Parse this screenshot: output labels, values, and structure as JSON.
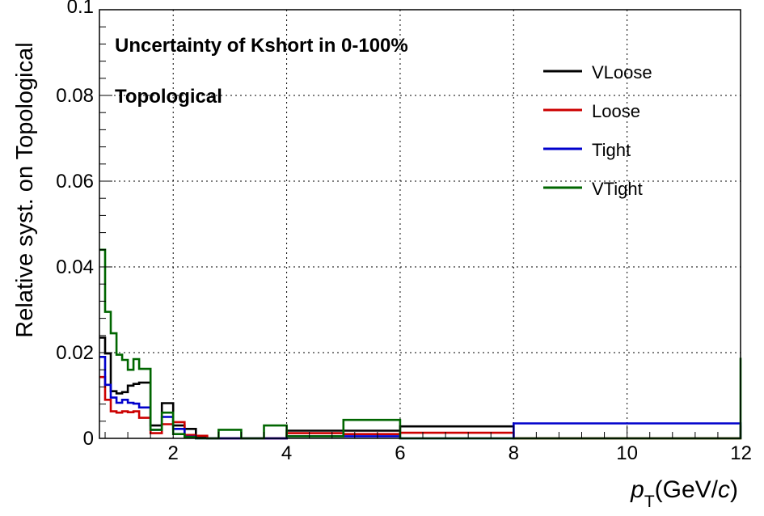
{
  "chart_data": {
    "type": "line",
    "style": "step-histogram",
    "title_lines": [
      "Uncertainty of Kshort in 0-100%",
      "Topological"
    ],
    "ylabel": "Relative syst. on Topological",
    "xlabel_parts": {
      "p": "p",
      "sub": "T",
      "unit_pre": "(GeV/",
      "unit_var": "c",
      "unit_post": ")"
    },
    "xlim": [
      0.7,
      12
    ],
    "ylim": [
      0,
      0.1
    ],
    "x_ticks": [
      2,
      4,
      6,
      8,
      10,
      12
    ],
    "x_tick_labels": [
      "2",
      "4",
      "6",
      "8",
      "10",
      "12"
    ],
    "y_ticks": [
      0,
      0.02,
      0.04,
      0.06,
      0.08,
      0.1
    ],
    "y_tick_labels": [
      "0",
      "0.02",
      "0.04",
      "0.06",
      "0.08",
      "0.1"
    ],
    "grid": true,
    "legend_position": "top-right",
    "bin_edges": [
      0.7,
      0.8,
      0.9,
      1.0,
      1.1,
      1.2,
      1.3,
      1.4,
      1.6,
      1.8,
      2.0,
      2.2,
      2.4,
      2.6,
      2.8,
      3.2,
      3.6,
      4.0,
      5.0,
      6.0,
      8.0,
      12.0
    ],
    "series": [
      {
        "name": "VLoose",
        "color": "#000000",
        "values": [
          0.0235,
          0.0198,
          0.011,
          0.0105,
          0.0108,
          0.0123,
          0.0127,
          0.013,
          0.003,
          0.0082,
          0.003,
          0.0022,
          0.0003,
          0.0,
          0.0,
          0.0,
          0.0,
          0.0018,
          0.0018,
          0.0028,
          0.0,
          0.0
        ]
      },
      {
        "name": "Loose",
        "color": "#cc0000",
        "values": [
          0.0143,
          0.009,
          0.0063,
          0.006,
          0.0063,
          0.0061,
          0.0063,
          0.0048,
          0.0012,
          0.0033,
          0.0038,
          0.0008,
          0.0006,
          0.0,
          0.0,
          0.0,
          0.0,
          0.0012,
          0.001,
          0.0013,
          0.0,
          0.003
        ]
      },
      {
        "name": "Tight",
        "color": "#0000cc",
        "values": [
          0.019,
          0.0125,
          0.0095,
          0.0083,
          0.009,
          0.0083,
          0.0081,
          0.0072,
          0.002,
          0.005,
          0.0022,
          0.0004,
          0.0,
          0.0,
          0.0,
          0.0,
          0.0,
          0.0005,
          0.0005,
          0.0,
          0.0035,
          0.0
        ]
      },
      {
        "name": "VTight",
        "color": "#006600",
        "values": [
          0.044,
          0.0295,
          0.0245,
          0.0195,
          0.0183,
          0.016,
          0.0185,
          0.0162,
          0.002,
          0.006,
          0.001,
          0.0003,
          0.0,
          0.0,
          0.002,
          0.0,
          0.003,
          0.0005,
          0.0043,
          0.0,
          0.0,
          0.0188
        ]
      }
    ]
  }
}
